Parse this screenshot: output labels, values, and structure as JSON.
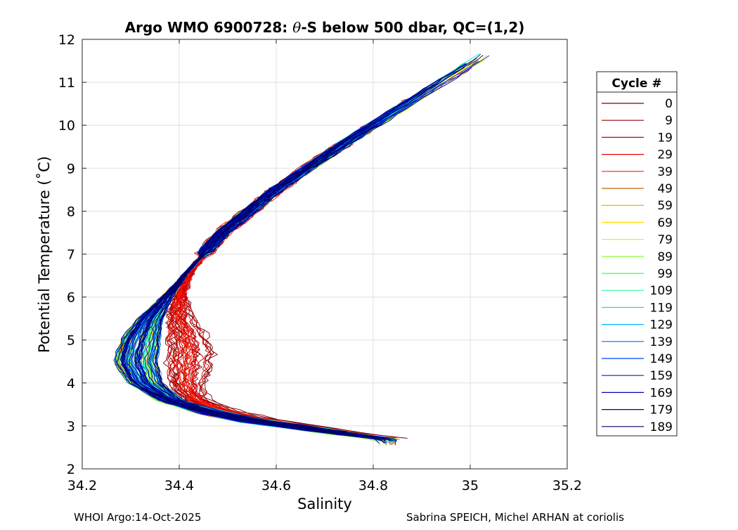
{
  "chart_data": {
    "type": "line",
    "title": "Argo WMO 6900728: θ-S below 500 dbar,  QC=(1,2)",
    "title_parts": {
      "prefix": "Argo WMO 6900728: ",
      "symbol": "θ",
      "suffix": "-S below 500 dbar,  QC=(1,2)"
    },
    "xlabel": "Salinity",
    "ylabel": "Potential Temperature (˚C)",
    "xlim": [
      34.2,
      35.2
    ],
    "ylim": [
      2,
      12
    ],
    "xticks": [
      "34.2",
      "34.4",
      "34.6",
      "34.8",
      "35",
      "35.2"
    ],
    "xtick_values": [
      34.2,
      34.4,
      34.6,
      34.8,
      35.0,
      35.2
    ],
    "yticks": [
      "2",
      "3",
      "4",
      "5",
      "6",
      "7",
      "8",
      "9",
      "10",
      "11",
      "12"
    ],
    "ytick_values": [
      2,
      3,
      4,
      5,
      6,
      7,
      8,
      9,
      10,
      11,
      12
    ],
    "grid": true,
    "legend": {
      "title": "Cycle #",
      "position": "right",
      "entries": [
        {
          "label": "0",
          "color": "#7f0000"
        },
        {
          "label": "9",
          "color": "#9e0000"
        },
        {
          "label": "19",
          "color": "#c40000"
        },
        {
          "label": "29",
          "color": "#e60000"
        },
        {
          "label": "39",
          "color": "#ff2000"
        },
        {
          "label": "49",
          "color": "#c86400"
        },
        {
          "label": "59",
          "color": "#e6a400"
        },
        {
          "label": "69",
          "color": "#ffe000"
        },
        {
          "label": "79",
          "color": "#c8ff00"
        },
        {
          "label": "89",
          "color": "#7aff20"
        },
        {
          "label": "99",
          "color": "#3cff50"
        },
        {
          "label": "109",
          "color": "#20ffa0"
        },
        {
          "label": "119",
          "color": "#10e6d8"
        },
        {
          "label": "129",
          "color": "#00b4ff"
        },
        {
          "label": "139",
          "color": "#0070e6"
        },
        {
          "label": "149",
          "color": "#0040ff"
        },
        {
          "label": "159",
          "color": "#0020d0"
        },
        {
          "label": "169",
          "color": "#0000b4"
        },
        {
          "label": "179",
          "color": "#00008c"
        },
        {
          "label": "189",
          "color": "#000060"
        }
      ]
    },
    "series_shape": {
      "description": "theta-S profiles, one per cycle; each follows the water-mass curve",
      "curve_theta": [
        11.7,
        10.5,
        9.5,
        8.5,
        7.5,
        6.5,
        5.5,
        5.0,
        4.5,
        4.0,
        3.6,
        3.3,
        3.1,
        2.95,
        2.8,
        2.7
      ],
      "curve_salinity": [
        35.04,
        34.87,
        34.73,
        34.6,
        34.49,
        34.41,
        34.34,
        34.32,
        34.31,
        34.33,
        34.38,
        34.47,
        34.56,
        34.66,
        34.75,
        34.83
      ]
    },
    "footer_left": "WHOI Argo:14-Oct-2025",
    "footer_right": "Sabrina SPEICH, Michel ARHAN at coriolis"
  }
}
